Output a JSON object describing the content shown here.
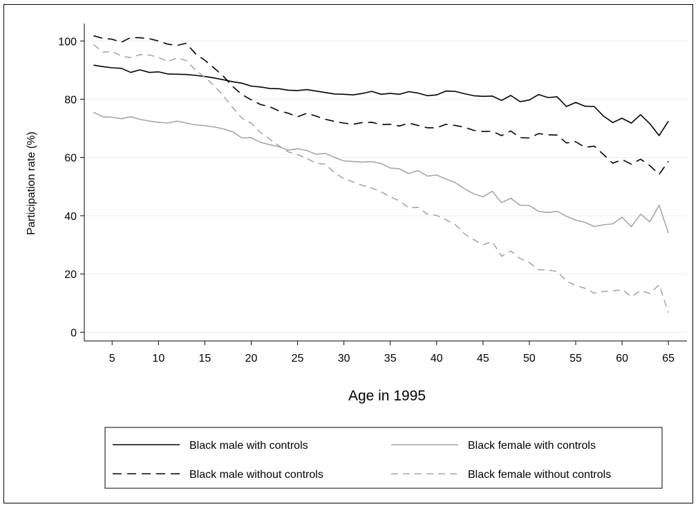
{
  "chart_data": {
    "type": "line",
    "title": "",
    "xlabel": "Age in 1995",
    "ylabel": "Participation rate (%)",
    "xlim": [
      2,
      67
    ],
    "ylim": [
      -3,
      106
    ],
    "xticks": [
      5,
      10,
      15,
      20,
      25,
      30,
      35,
      40,
      45,
      50,
      55,
      60,
      65
    ],
    "yticks": [
      0,
      20,
      40,
      60,
      80,
      100
    ],
    "grid": "horizontal",
    "legend_position": "bottom",
    "x": [
      3,
      4,
      5,
      6,
      7,
      8,
      9,
      10,
      11,
      12,
      13,
      14,
      15,
      16,
      17,
      18,
      19,
      20,
      21,
      22,
      23,
      24,
      25,
      26,
      27,
      28,
      29,
      30,
      31,
      32,
      33,
      34,
      35,
      36,
      37,
      38,
      39,
      40,
      41,
      42,
      43,
      44,
      45,
      46,
      47,
      48,
      49,
      50,
      51,
      52,
      53,
      54,
      55,
      56,
      57,
      58,
      59,
      60,
      61,
      62,
      63,
      64,
      65
    ],
    "series": [
      {
        "name": "Black male with controls",
        "color": "#000000",
        "dash": "solid",
        "values": [
          91.7,
          91.2,
          90.8,
          90.6,
          89.2,
          90.1,
          89.2,
          89.4,
          88.7,
          88.6,
          88.5,
          88.2,
          87.8,
          87.3,
          86.7,
          86.0,
          85.5,
          84.5,
          84.2,
          83.7,
          83.6,
          83.1,
          83.0,
          83.3,
          82.8,
          82.3,
          81.8,
          81.7,
          81.5,
          82.0,
          82.7,
          81.7,
          82.0,
          81.7,
          82.6,
          82.1,
          81.2,
          81.5,
          82.8,
          82.7,
          81.9,
          81.2,
          81.0,
          81.1,
          79.6,
          81.3,
          79.2,
          79.7,
          81.6,
          80.6,
          80.8,
          77.5,
          78.9,
          77.6,
          77.5,
          74.2,
          72.0,
          73.5,
          71.8,
          74.7,
          71.6,
          67.5,
          72.5
        ]
      },
      {
        "name": "Black male without controls",
        "color": "#000000",
        "dash": "long-dash",
        "values": [
          101.8,
          100.9,
          100.6,
          99.6,
          101.2,
          101.1,
          100.8,
          100.0,
          98.9,
          98.5,
          99.2,
          95.6,
          93.4,
          90.7,
          87.9,
          84.4,
          81.6,
          79.8,
          78.2,
          77.4,
          76.0,
          75.2,
          74.0,
          75.2,
          74.2,
          73.1,
          72.4,
          71.8,
          71.4,
          72.0,
          72.1,
          71.3,
          71.4,
          70.8,
          71.8,
          71.0,
          70.2,
          70.2,
          71.4,
          71.0,
          70.4,
          69.3,
          68.9,
          69.0,
          67.5,
          69.1,
          66.8,
          66.7,
          68.2,
          67.8,
          67.7,
          65.0,
          65.4,
          63.5,
          63.9,
          61.0,
          58.0,
          59.3,
          57.7,
          59.4,
          57.2,
          54.2,
          58.7
        ]
      },
      {
        "name": "Black female with controls",
        "color": "#a6a6a6",
        "dash": "solid",
        "values": [
          75.5,
          74.0,
          73.8,
          73.3,
          74.0,
          73.1,
          72.5,
          72.1,
          71.8,
          72.5,
          71.8,
          71.2,
          70.9,
          70.5,
          69.8,
          68.8,
          66.7,
          66.8,
          65.2,
          64.4,
          63.7,
          62.5,
          63.0,
          62.4,
          61.1,
          61.4,
          60.0,
          58.8,
          58.6,
          58.4,
          58.6,
          57.9,
          56.4,
          56.1,
          54.5,
          55.5,
          53.6,
          54.0,
          52.6,
          51.4,
          49.3,
          47.5,
          46.5,
          48.4,
          44.5,
          46.0,
          43.6,
          43.5,
          41.5,
          41.1,
          41.5,
          39.8,
          38.5,
          37.7,
          36.3,
          36.9,
          37.2,
          39.5,
          36.2,
          40.5,
          37.9,
          43.6,
          34.0
        ]
      },
      {
        "name": "Black female without controls",
        "color": "#a6a6a6",
        "dash": "dash",
        "values": [
          98.8,
          96.1,
          96.5,
          94.8,
          94.3,
          95.3,
          95.2,
          94.4,
          92.9,
          94.2,
          93.3,
          90.0,
          87.5,
          84.7,
          81.2,
          77.2,
          73.5,
          71.8,
          68.6,
          66.3,
          64.0,
          61.9,
          61.0,
          59.7,
          58.0,
          57.7,
          54.7,
          52.7,
          51.6,
          50.4,
          49.5,
          48.2,
          46.5,
          45.1,
          42.7,
          42.9,
          40.5,
          40.1,
          38.6,
          37.0,
          33.8,
          31.8,
          30.0,
          31.1,
          26.1,
          27.9,
          25.3,
          23.9,
          21.5,
          21.3,
          20.9,
          17.5,
          16.1,
          15.1,
          13.4,
          14.0,
          14.2,
          14.6,
          12.2,
          14.3,
          13.3,
          16.3,
          6.7
        ]
      }
    ]
  }
}
